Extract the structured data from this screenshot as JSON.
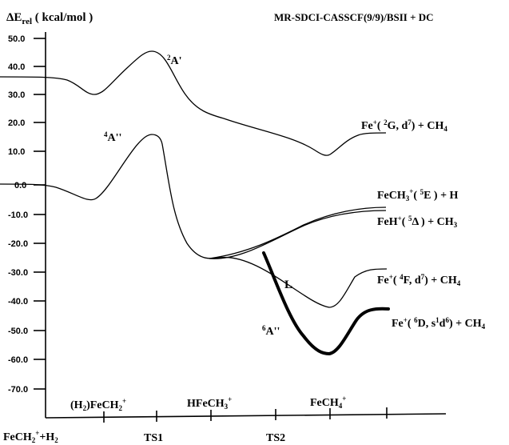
{
  "y_axis": {
    "label_delta": "ΔE",
    "label_sub": "rel",
    "label_unit": " ( kcal/mol )",
    "ticks": [
      "50.0",
      "40.0",
      "30.0",
      "20.0",
      "10.0",
      "0.0",
      "-10.0",
      "-20.0",
      "-30.0",
      "-40.0",
      "-50.0",
      "-60.0",
      "-70.0"
    ]
  },
  "method_title": "MR-SDCI-CASSCF(9/9)/BSII + DC",
  "state_labels": {
    "s2A": {
      "sup": "2",
      "text": "A'"
    },
    "s4A": {
      "sup": "4",
      "text": "A''"
    },
    "s6A": {
      "sup": "6",
      "text": "A''"
    },
    "crossing": "L"
  },
  "asymptotes": {
    "fe2G": {
      "p1": "Fe",
      "p1sup": "+",
      "p2": "( ",
      "p2sup": "2",
      "p3": "G, d",
      "p3sup": "7",
      "p4": ") +  CH",
      "p4sub": "4"
    },
    "feCH3": {
      "p1": "FeCH",
      "p1sub": "3",
      "p1sup": "+",
      "p2": "( ",
      "p2sup": "5",
      "p3": "E ) + H"
    },
    "feH": {
      "p1": "FeH",
      "p1sup": "+",
      "p2": "( ",
      "p2sup": "5",
      "p3": "Δ  ) + CH",
      "p3sub": "3"
    },
    "fe4F": {
      "p1": "Fe",
      "p1sup": "+",
      "p2": "( ",
      "p2sup": "4",
      "p3": "F, d",
      "p3sup": "7",
      "p4": ") +  CH",
      "p4sub": "4"
    },
    "fe6D": {
      "p1": "Fe",
      "p1sup": "+",
      "p2": "( ",
      "p2sup": "6",
      "p3": "D, s",
      "p3sup": "1",
      "p4": "d",
      "p4sup": "6",
      "p5": ") +  CH",
      "p5sub": "4"
    }
  },
  "x_axis": {
    "minima": [
      {
        "pre": "(H",
        "sub": "2",
        "mid": ")FeCH",
        "sub2": "2",
        "sup": "+"
      },
      {
        "pre": "HFeCH",
        "sub": "3",
        "sup": "+"
      },
      {
        "pre": "FeCH",
        "sub": "4",
        "sup": "+"
      }
    ],
    "points": [
      {
        "pre": "FeCH",
        "sub": "2",
        "sup": "+",
        "post": "+H",
        "sub2": "2"
      },
      {
        "pre": "TS1"
      },
      {
        "pre": "TS2"
      }
    ]
  }
}
